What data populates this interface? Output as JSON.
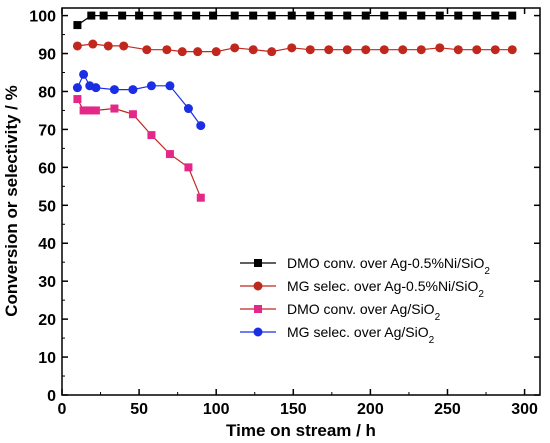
{
  "chart_data": {
    "type": "line",
    "xlabel": "Time on stream / h",
    "ylabel": "Conversion or selectivity / %",
    "xlim": [
      0,
      310
    ],
    "ylim": [
      0,
      102
    ],
    "xticks": [
      0,
      50,
      100,
      150,
      200,
      250,
      300
    ],
    "yticks": [
      0,
      10,
      20,
      30,
      40,
      50,
      60,
      70,
      80,
      90,
      100
    ],
    "grid": false,
    "legend_position": "bottom-right",
    "series": [
      {
        "name": "DMO conv. over Ag-0.5%Ni/SiO",
        "name_sub": "2",
        "marker": "square",
        "color": "#000000",
        "line_color": "#000000",
        "x": [
          10,
          19,
          27,
          39,
          50,
          62,
          75,
          87,
          98,
          112,
          124,
          136,
          149,
          161,
          173,
          185,
          197,
          209,
          221,
          233,
          245,
          257,
          269,
          281,
          292
        ],
        "y": [
          97.5,
          100,
          100,
          100,
          100,
          100,
          100,
          100,
          100,
          100,
          100,
          100,
          100,
          100,
          100,
          100,
          100,
          100,
          100,
          100,
          100,
          100,
          100,
          100,
          100
        ]
      },
      {
        "name": "MG selec. over Ag-0.5%Ni/SiO",
        "name_sub": "2",
        "marker": "circle",
        "color": "#c0281e",
        "line_color": "#c0281e",
        "x": [
          10,
          20,
          30,
          40,
          55,
          68,
          78,
          88,
          100,
          112,
          124,
          136,
          149,
          161,
          173,
          185,
          197,
          209,
          221,
          233,
          245,
          257,
          269,
          281,
          292
        ],
        "y": [
          92,
          92.5,
          92,
          92,
          91,
          91,
          90.5,
          90.5,
          90.5,
          91.5,
          91,
          90.5,
          91.5,
          91,
          91,
          91,
          91,
          91,
          91,
          91,
          91.5,
          91,
          91,
          91,
          91
        ]
      },
      {
        "name": "DMO conv. over Ag/SiO",
        "name_sub": "2",
        "marker": "square",
        "color": "#e4288a",
        "line_color": "#c0281e",
        "x": [
          10,
          14,
          18,
          22,
          34,
          46,
          58,
          70,
          82,
          90
        ],
        "y": [
          78,
          75,
          75,
          75,
          75.5,
          74,
          68.5,
          63.5,
          60,
          52
        ]
      },
      {
        "name": "MG selec. over Ag/SiO",
        "name_sub": "2",
        "marker": "circle",
        "color": "#1a2ee6",
        "line_color": "#1a2ee6",
        "x": [
          10,
          14,
          18,
          22,
          34,
          46,
          58,
          70,
          82,
          90
        ],
        "y": [
          81,
          84.5,
          81.5,
          81,
          80.5,
          80.5,
          81.5,
          81.5,
          75.5,
          71
        ]
      }
    ]
  }
}
